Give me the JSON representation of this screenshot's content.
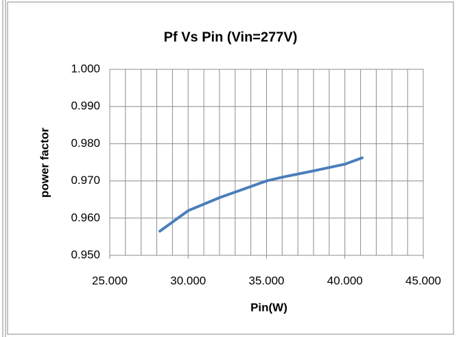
{
  "chart_data": {
    "type": "line",
    "title": "Pf Vs Pin (Vin=277V)",
    "x_label": "Pin(W)",
    "y_label": "power factor",
    "series": [
      {
        "name": "Pf",
        "color": "#4a7ebb",
        "x": [
          28.2,
          30,
          32,
          34,
          35,
          36,
          38,
          40,
          41.1
        ],
        "values": [
          0.9565,
          0.962,
          0.9655,
          0.9685,
          0.97,
          0.971,
          0.9727,
          0.9745,
          0.9762
        ]
      }
    ],
    "xlim": [
      25,
      45
    ],
    "xticks": [
      {
        "value": 25,
        "label": "25.000"
      },
      {
        "value": 30,
        "label": "30.000"
      },
      {
        "value": 35,
        "label": "35.000"
      },
      {
        "value": 40,
        "label": "40.000"
      },
      {
        "value": 45,
        "label": "45.000"
      }
    ],
    "x_minor_ticks": [
      25,
      26,
      27,
      28,
      29,
      30,
      31,
      32,
      33,
      34,
      35,
      36,
      37,
      38,
      39,
      40,
      41,
      42,
      43,
      44,
      45
    ],
    "ylim": [
      0.95,
      1.0
    ],
    "yticks": [
      {
        "value": 0.95,
        "label": "0.950"
      },
      {
        "value": 0.96,
        "label": "0.960"
      },
      {
        "value": 0.97,
        "label": "0.970"
      },
      {
        "value": 0.98,
        "label": "0.980"
      },
      {
        "value": 0.99,
        "label": "0.990"
      },
      {
        "value": 1.0,
        "label": "1.000"
      }
    ],
    "grid": true
  }
}
